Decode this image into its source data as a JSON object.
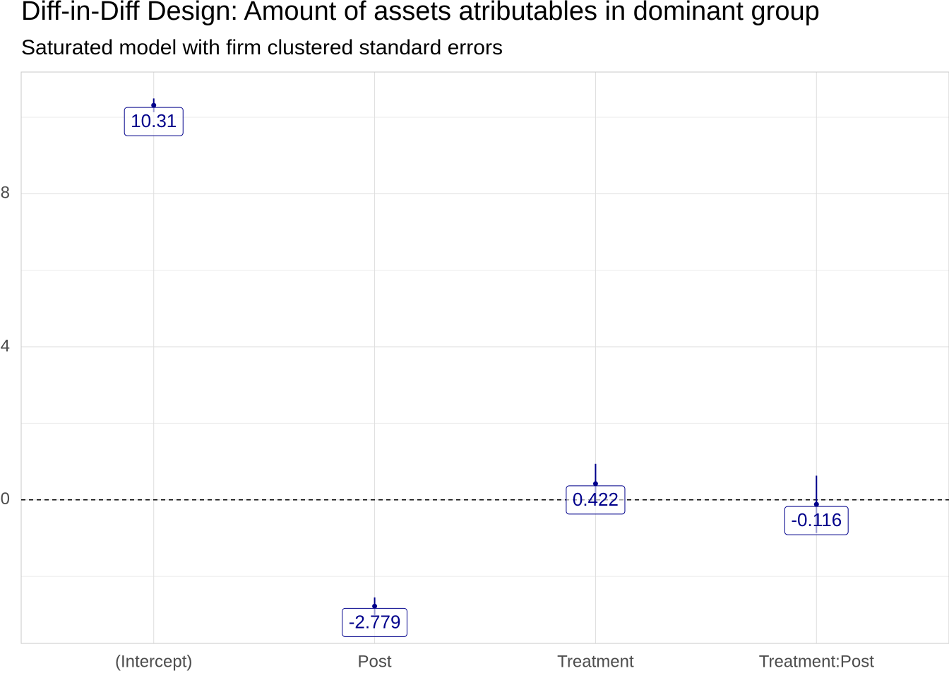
{
  "chart_data": {
    "type": "errorbar",
    "title": "Diff-in-Diff Design: Amount of assets atributables in dominant group",
    "subtitle": "Saturated model with firm clustered standard errors",
    "categories": [
      "(Intercept)",
      "Post",
      "Treatment",
      "Treatment:Post"
    ],
    "values": [
      10.31,
      -2.779,
      0.422,
      -0.116
    ],
    "errors": [
      0.18,
      0.23,
      0.52,
      0.75
    ],
    "color": "#00008b",
    "ylim": [
      -3.75,
      11.18
    ],
    "yticks": [
      0,
      4,
      8
    ],
    "minor_yticks": [
      -2,
      2,
      6,
      10
    ],
    "reference_line": 0,
    "grid": true
  }
}
